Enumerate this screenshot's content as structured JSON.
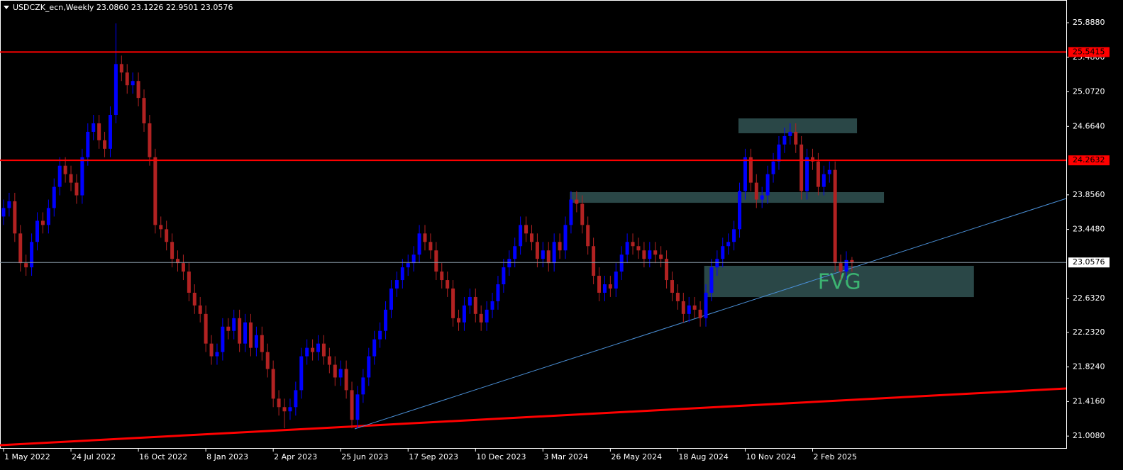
{
  "chart_data": {
    "type": "candlestick",
    "title": "USDCZK_ecn,Weekly  23.0860 23.1226 22.9501 23.0576",
    "up_color": "#0000ff",
    "down_color": "#b22222",
    "xlim": [
      -0.63,
      189.14
    ],
    "ylim": [
      20.867,
      26.156
    ],
    "xticks": [
      {
        "value": 0,
        "label": "1 May 2022"
      },
      {
        "value": 12,
        "label": "24 Jul 2022"
      },
      {
        "value": 24,
        "label": "16 Oct 2022"
      },
      {
        "value": 36,
        "label": "8 Jan 2023"
      },
      {
        "value": 48,
        "label": "2 Apr 2023"
      },
      {
        "value": 60,
        "label": "25 Jun 2023"
      },
      {
        "value": 72,
        "label": "17 Sep 2023"
      },
      {
        "value": 84,
        "label": "10 Dec 2023"
      },
      {
        "value": 96,
        "label": "3 Mar 2024"
      },
      {
        "value": 108,
        "label": "26 May 2024"
      },
      {
        "value": 120,
        "label": "18 Aug 2024"
      },
      {
        "value": 132,
        "label": "10 Nov 2024"
      },
      {
        "value": 144,
        "label": "2 Feb 2025"
      }
    ],
    "yticks": [
      {
        "value": 25.888,
        "label": "25.8880"
      },
      {
        "value": 25.48,
        "label": "25.4800"
      },
      {
        "value": 25.072,
        "label": "25.0720"
      },
      {
        "value": 24.664,
        "label": "24.6640"
      },
      {
        "value": 23.856,
        "label": "23.8560"
      },
      {
        "value": 23.448,
        "label": "23.4480"
      },
      {
        "value": 22.632,
        "label": "22.6320"
      },
      {
        "value": 22.232,
        "label": "22.2320"
      },
      {
        "value": 21.824,
        "label": "21.8240"
      },
      {
        "value": 21.416,
        "label": "21.4160"
      },
      {
        "value": 21.008,
        "label": "21.0080"
      }
    ],
    "open": [
      23.6,
      23.7,
      23.78,
      23.4,
      23.05,
      23.0,
      23.3,
      23.55,
      23.5,
      23.7,
      23.95,
      24.2,
      24.1,
      24.0,
      23.85,
      24.3,
      24.6,
      24.7,
      24.5,
      24.4,
      24.8,
      25.4,
      25.3,
      25.15,
      25.2,
      25.0,
      24.7,
      24.3,
      23.5,
      23.45,
      23.3,
      23.1,
      23.05,
      22.95,
      22.7,
      22.55,
      22.45,
      22.1,
      21.95,
      22.0,
      22.3,
      22.25,
      22.4,
      22.1,
      22.35,
      22.05,
      22.2,
      22.0,
      21.8,
      21.45,
      21.35,
      21.3,
      21.35,
      21.55,
      21.95,
      22.05,
      22.0,
      22.1,
      21.95,
      21.85,
      21.7,
      21.8,
      21.55,
      21.2,
      21.5,
      21.7,
      21.95,
      22.15,
      22.25,
      22.5,
      22.75,
      22.85,
      23.0,
      23.05,
      23.15,
      23.4,
      23.3,
      23.2,
      22.95,
      22.85,
      22.75,
      22.4,
      22.35,
      22.55,
      22.65,
      22.45,
      22.35,
      22.5,
      22.6,
      22.8,
      23.0,
      23.1,
      23.25,
      23.5,
      23.4,
      23.3,
      23.1,
      23.2,
      23.05,
      23.3,
      23.2,
      23.5,
      23.8,
      23.75,
      23.5,
      23.25,
      22.9,
      22.7,
      22.8,
      22.75,
      22.95,
      23.15,
      23.3,
      23.25,
      23.2,
      23.1,
      23.2,
      23.15,
      23.1,
      22.85,
      22.7,
      22.6,
      22.45,
      22.55,
      22.5,
      22.4,
      22.7,
      23.0,
      23.1,
      23.25,
      23.3,
      23.45,
      23.9,
      24.3,
      24.0,
      23.8,
      23.85,
      24.1,
      24.25,
      24.45,
      24.55,
      24.6,
      24.45,
      23.9,
      24.3,
      24.25,
      23.95,
      24.1,
      24.15,
      23.05,
      22.95,
      23.086
    ],
    "high": [
      23.8,
      23.88,
      23.88,
      23.5,
      23.15,
      23.4,
      23.65,
      23.65,
      23.8,
      24.05,
      24.3,
      24.3,
      24.2,
      24.1,
      24.4,
      24.7,
      24.8,
      24.8,
      24.6,
      24.9,
      25.88,
      25.5,
      25.4,
      25.3,
      25.3,
      25.1,
      24.8,
      24.4,
      23.6,
      23.55,
      23.4,
      23.2,
      23.15,
      23.05,
      22.8,
      22.65,
      22.55,
      22.2,
      22.1,
      22.4,
      22.4,
      22.5,
      22.5,
      22.45,
      22.45,
      22.3,
      22.3,
      22.1,
      21.9,
      21.55,
      21.45,
      21.45,
      21.65,
      22.05,
      22.15,
      22.15,
      22.2,
      22.2,
      22.05,
      21.95,
      21.9,
      21.9,
      21.65,
      21.6,
      21.8,
      22.05,
      22.25,
      22.35,
      22.6,
      22.85,
      22.95,
      23.1,
      23.15,
      23.25,
      23.5,
      23.5,
      23.4,
      23.3,
      23.05,
      22.95,
      22.85,
      22.5,
      22.65,
      22.75,
      22.75,
      22.55,
      22.6,
      22.7,
      22.9,
      23.1,
      23.2,
      23.35,
      23.6,
      23.6,
      23.5,
      23.4,
      23.3,
      23.3,
      23.4,
      23.4,
      23.6,
      23.9,
      23.9,
      23.85,
      23.6,
      23.35,
      23.0,
      22.9,
      22.9,
      23.05,
      23.25,
      23.4,
      23.4,
      23.35,
      23.3,
      23.3,
      23.3,
      23.25,
      23.2,
      22.95,
      22.8,
      22.7,
      22.65,
      22.65,
      22.6,
      22.8,
      23.1,
      23.2,
      23.35,
      23.4,
      23.55,
      24.0,
      24.4,
      24.4,
      24.1,
      23.95,
      24.2,
      24.35,
      24.55,
      24.65,
      24.7,
      24.7,
      24.55,
      24.4,
      24.4,
      24.35,
      24.2,
      24.25,
      24.25,
      23.15,
      23.19,
      23.1226
    ],
    "low": [
      23.5,
      23.6,
      23.3,
      22.95,
      22.9,
      22.9,
      23.2,
      23.4,
      23.4,
      23.6,
      23.85,
      24.0,
      23.9,
      23.75,
      23.75,
      24.2,
      24.5,
      24.4,
      24.3,
      24.3,
      24.7,
      25.2,
      25.05,
      25.05,
      24.9,
      24.6,
      24.2,
      23.4,
      23.35,
      23.2,
      23.0,
      22.95,
      22.85,
      22.6,
      22.45,
      22.35,
      22.0,
      21.85,
      21.85,
      21.9,
      22.15,
      22.15,
      22.0,
      22.0,
      21.95,
      21.95,
      21.9,
      21.7,
      21.35,
      21.25,
      21.1,
      21.2,
      21.25,
      21.45,
      21.85,
      21.9,
      21.9,
      21.85,
      21.75,
      21.6,
      21.6,
      21.45,
      21.1,
      21.1,
      21.4,
      21.6,
      21.85,
      22.05,
      22.15,
      22.4,
      22.65,
      22.75,
      22.9,
      22.95,
      23.05,
      23.2,
      23.1,
      22.85,
      22.75,
      22.65,
      22.3,
      22.25,
      22.25,
      22.45,
      22.35,
      22.25,
      22.25,
      22.4,
      22.5,
      22.7,
      22.9,
      23.0,
      23.15,
      23.3,
      23.2,
      23.0,
      23.0,
      22.95,
      22.95,
      23.1,
      23.1,
      23.4,
      23.65,
      23.4,
      23.15,
      22.8,
      22.6,
      22.6,
      22.65,
      22.65,
      22.85,
      23.05,
      23.15,
      23.1,
      23.0,
      23.0,
      23.05,
      23.0,
      22.75,
      22.6,
      22.5,
      22.35,
      22.35,
      22.4,
      22.3,
      22.3,
      22.6,
      22.9,
      23.0,
      23.15,
      23.2,
      23.35,
      23.8,
      23.9,
      23.7,
      23.7,
      23.75,
      24.0,
      24.15,
      24.35,
      24.45,
      24.35,
      23.8,
      23.8,
      24.15,
      23.85,
      23.85,
      24.0,
      22.95,
      22.85,
      22.85,
      22.9501
    ],
    "close": [
      23.7,
      23.78,
      23.4,
      23.05,
      23.0,
      23.3,
      23.55,
      23.5,
      23.7,
      23.95,
      24.2,
      24.1,
      24.0,
      23.85,
      24.3,
      24.6,
      24.7,
      24.5,
      24.4,
      24.8,
      25.4,
      25.3,
      25.15,
      25.2,
      25.0,
      24.7,
      24.3,
      23.5,
      23.45,
      23.3,
      23.1,
      23.05,
      22.95,
      22.7,
      22.55,
      22.45,
      22.1,
      21.95,
      22.0,
      22.3,
      22.25,
      22.4,
      22.1,
      22.35,
      22.05,
      22.2,
      22.0,
      21.8,
      21.45,
      21.35,
      21.3,
      21.35,
      21.55,
      21.95,
      22.05,
      22.0,
      22.1,
      21.95,
      21.85,
      21.7,
      21.8,
      21.55,
      21.2,
      21.5,
      21.7,
      21.95,
      22.15,
      22.25,
      22.5,
      22.75,
      22.85,
      23.0,
      23.05,
      23.15,
      23.4,
      23.3,
      23.2,
      22.95,
      22.85,
      22.75,
      22.4,
      22.35,
      22.55,
      22.65,
      22.45,
      22.35,
      22.5,
      22.6,
      22.8,
      23.0,
      23.1,
      23.25,
      23.5,
      23.4,
      23.3,
      23.1,
      23.2,
      23.05,
      23.3,
      23.2,
      23.5,
      23.8,
      23.75,
      23.5,
      23.25,
      22.9,
      22.7,
      22.8,
      22.75,
      22.95,
      23.15,
      23.3,
      23.25,
      23.2,
      23.1,
      23.2,
      23.15,
      23.1,
      22.85,
      22.7,
      22.6,
      22.45,
      22.55,
      22.5,
      22.4,
      22.7,
      23.0,
      23.1,
      23.25,
      23.3,
      23.45,
      23.9,
      24.3,
      24.0,
      23.8,
      23.85,
      24.1,
      24.25,
      24.45,
      24.55,
      24.6,
      24.45,
      23.9,
      24.3,
      24.25,
      23.95,
      24.1,
      24.15,
      23.05,
      22.95,
      23.086,
      23.0576
    ],
    "levels": [
      {
        "value": 25.5415,
        "color": "#ff0000"
      },
      {
        "value": 24.2632,
        "color": "#ff0000"
      }
    ],
    "current_color": "#8a9aa8",
    "trendlines": [
      {
        "x": [
          -0.63,
          189.14
        ],
        "y": [
          20.9,
          21.57
        ],
        "color": "#ff0000",
        "width": 3
      },
      {
        "x": [
          62.5,
          189.14
        ],
        "y": [
          21.093,
          23.813
        ],
        "color": "#4a8fd6",
        "width": 1
      }
    ],
    "zones": [
      {
        "x": [
          130.8,
          151.9
        ],
        "y": [
          24.583,
          24.758
        ],
        "color": "#2f4f4f"
      },
      {
        "x": [
          100.8,
          156.7
        ],
        "y": [
          23.762,
          23.888
        ],
        "color": "#2f4f4f"
      },
      {
        "x": [
          124.7,
          172.7
        ],
        "y": [
          22.649,
          23.018
        ],
        "color": "#2f4f4f",
        "label": "FVG",
        "label_color": "#3cb371"
      }
    ]
  }
}
